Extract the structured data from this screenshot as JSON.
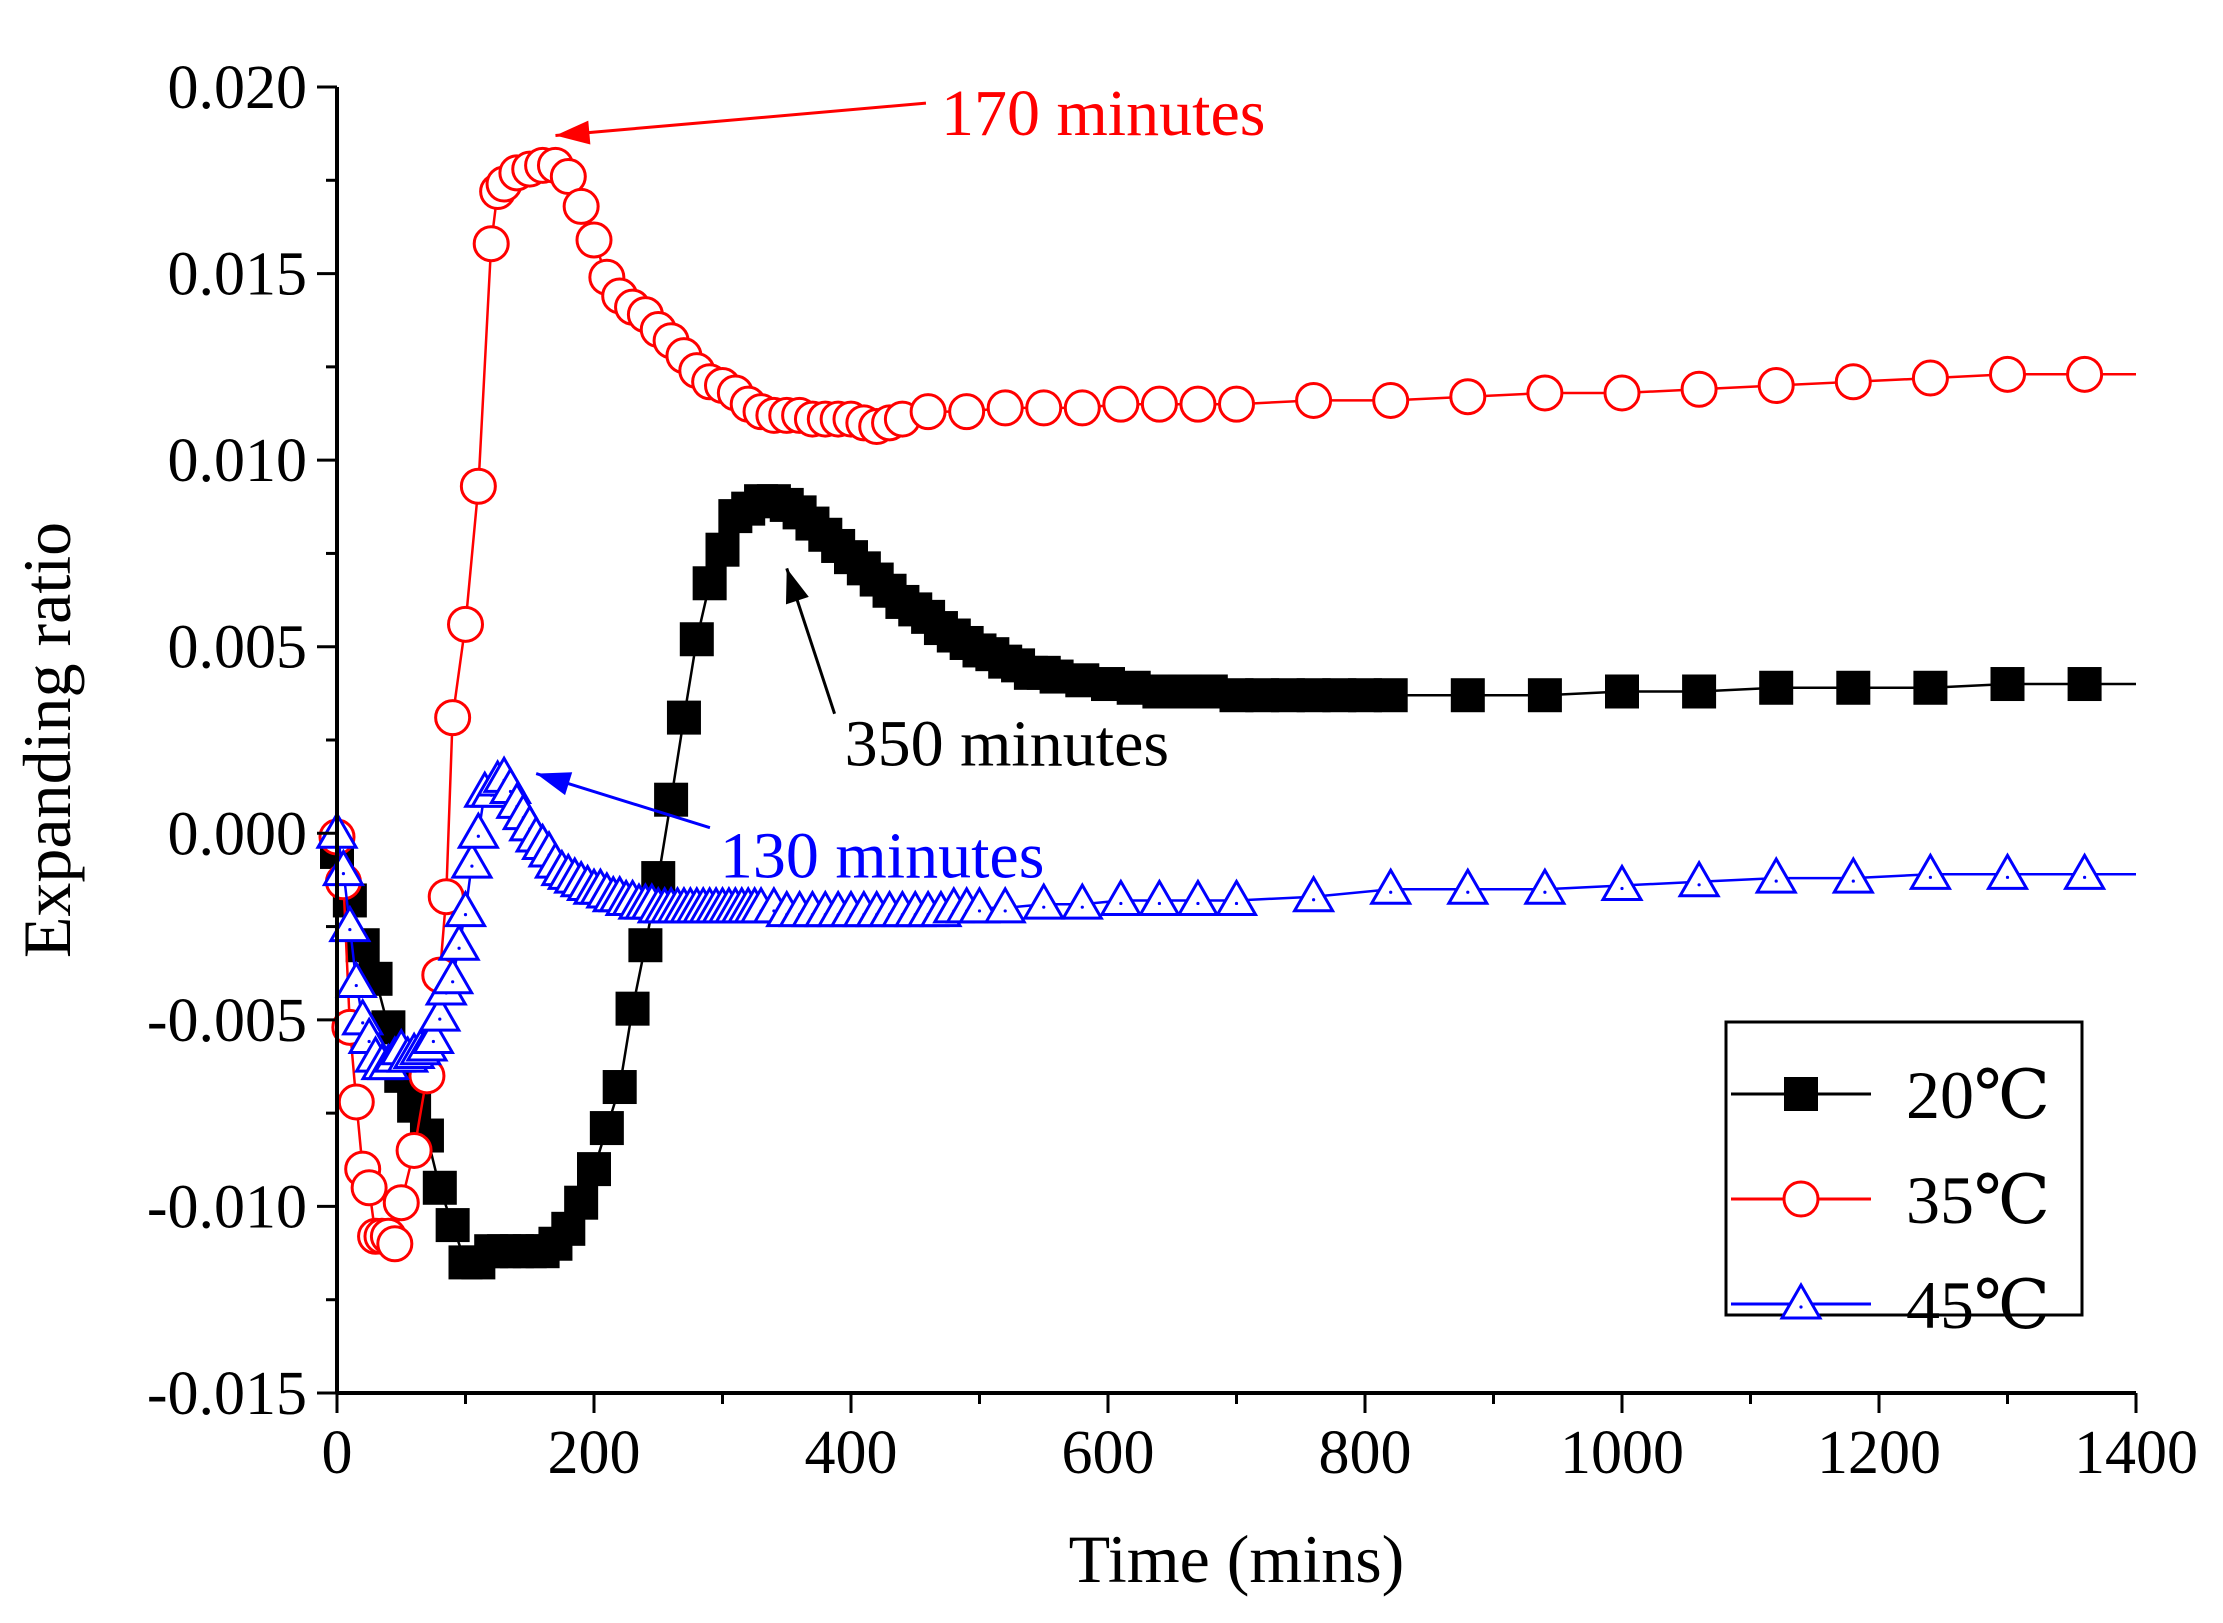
{
  "chart_data": {
    "type": "line",
    "title": "",
    "xlabel": "Time (mins)",
    "ylabel": "Expanding ratio",
    "xlim": [
      0,
      1400
    ],
    "ylim": [
      -0.015,
      0.02
    ],
    "xticks": [
      0,
      200,
      400,
      600,
      800,
      1000,
      1200,
      1400
    ],
    "xtick_labels": [
      "0",
      "200",
      "400",
      "600",
      "800",
      "1000",
      "1200",
      "1400"
    ],
    "yticks": [
      0.02,
      0.015,
      0.01,
      0.005,
      0.0,
      -0.005,
      -0.01,
      -0.015
    ],
    "ytick_labels": [
      "0.020",
      "0.015",
      "0.010",
      "0.005",
      "0.000",
      "-0.005",
      "-0.010",
      "-0.015"
    ],
    "grid": false,
    "legend_position": "bottom-right",
    "series": [
      {
        "name": "20℃",
        "color": "#000000",
        "marker": "filled-square",
        "x": [
          0,
          10,
          20,
          30,
          40,
          50,
          60,
          70,
          80,
          90,
          100,
          110,
          120,
          130,
          140,
          150,
          160,
          170,
          180,
          190,
          200,
          210,
          220,
          230,
          240,
          250,
          260,
          270,
          280,
          290,
          300,
          310,
          320,
          330,
          340,
          350,
          360,
          370,
          380,
          390,
          400,
          410,
          420,
          430,
          440,
          450,
          460,
          470,
          480,
          490,
          500,
          510,
          520,
          530,
          540,
          550,
          560,
          580,
          600,
          620,
          640,
          660,
          680,
          700,
          720,
          740,
          760,
          780,
          800,
          820,
          880,
          940,
          1000,
          1060,
          1120,
          1180,
          1240,
          1300,
          1360
        ],
        "y": [
          -0.0005,
          -0.0018,
          -0.003,
          -0.0039,
          -0.0052,
          -0.0065,
          -0.0073,
          -0.0081,
          -0.0095,
          -0.0105,
          -0.0115,
          -0.0115,
          -0.0112,
          -0.0112,
          -0.0112,
          -0.0112,
          -0.0112,
          -0.011,
          -0.0106,
          -0.0099,
          -0.009,
          -0.0079,
          -0.0068,
          -0.0047,
          -0.003,
          -0.0012,
          0.0009,
          0.0031,
          0.0052,
          0.0067,
          0.0076,
          0.0085,
          0.0087,
          0.0089,
          0.0089,
          0.0088,
          0.0086,
          0.0083,
          0.008,
          0.0077,
          0.0074,
          0.0071,
          0.0068,
          0.0065,
          0.0062,
          0.006,
          0.0058,
          0.0055,
          0.0053,
          0.0051,
          0.0049,
          0.0048,
          0.0046,
          0.0045,
          0.0043,
          0.0043,
          0.0042,
          0.0041,
          0.004,
          0.0039,
          0.0038,
          0.0038,
          0.0038,
          0.0037,
          0.0037,
          0.0037,
          0.0037,
          0.0037,
          0.0037,
          0.0037,
          0.0037,
          0.0037,
          0.0038,
          0.0038,
          0.0039,
          0.0039,
          0.0039,
          0.004,
          0.004
        ]
      },
      {
        "name": "35℃",
        "color": "#ff0000",
        "marker": "open-circle",
        "x": [
          0,
          5,
          10,
          15,
          20,
          25,
          30,
          35,
          40,
          45,
          50,
          60,
          70,
          80,
          85,
          90,
          100,
          110,
          120,
          125,
          130,
          140,
          150,
          160,
          170,
          180,
          190,
          200,
          210,
          220,
          230,
          240,
          250,
          260,
          270,
          280,
          290,
          300,
          310,
          320,
          330,
          340,
          350,
          360,
          370,
          380,
          390,
          400,
          410,
          420,
          430,
          440,
          460,
          490,
          520,
          550,
          580,
          610,
          640,
          670,
          700,
          760,
          820,
          880,
          940,
          1000,
          1060,
          1120,
          1180,
          1240,
          1300,
          1360
        ],
        "y": [
          -0.0001,
          -0.0013,
          -0.0052,
          -0.0072,
          -0.009,
          -0.0095,
          -0.0108,
          -0.0108,
          -0.0108,
          -0.011,
          -0.0099,
          -0.0085,
          -0.0065,
          -0.0038,
          -0.0017,
          0.0031,
          0.0056,
          0.0093,
          0.0158,
          0.0172,
          0.0174,
          0.0177,
          0.0178,
          0.0179,
          0.0179,
          0.0176,
          0.0168,
          0.0159,
          0.0149,
          0.0144,
          0.0141,
          0.0139,
          0.0135,
          0.0132,
          0.0128,
          0.0124,
          0.0121,
          0.012,
          0.0118,
          0.0115,
          0.0113,
          0.0112,
          0.0112,
          0.0112,
          0.0111,
          0.0111,
          0.0111,
          0.0111,
          0.011,
          0.0109,
          0.011,
          0.0111,
          0.0113,
          0.0113,
          0.0114,
          0.0114,
          0.0114,
          0.0115,
          0.0115,
          0.0115,
          0.0115,
          0.0116,
          0.0116,
          0.0117,
          0.0118,
          0.0118,
          0.0119,
          0.012,
          0.0121,
          0.0122,
          0.0123,
          0.0123
        ]
      },
      {
        "name": "45℃",
        "color": "#0000ff",
        "marker": "open-triangle",
        "x": [
          0,
          5,
          10,
          15,
          20,
          25,
          30,
          35,
          40,
          45,
          50,
          55,
          60,
          65,
          70,
          75,
          80,
          85,
          90,
          95,
          100,
          105,
          110,
          115,
          120,
          125,
          130,
          135,
          140,
          145,
          150,
          155,
          160,
          165,
          170,
          175,
          180,
          185,
          190,
          195,
          200,
          205,
          210,
          215,
          220,
          225,
          230,
          235,
          240,
          245,
          250,
          255,
          260,
          265,
          270,
          275,
          280,
          285,
          290,
          295,
          300,
          305,
          310,
          315,
          320,
          325,
          330,
          340,
          350,
          360,
          370,
          380,
          390,
          400,
          410,
          420,
          430,
          440,
          450,
          460,
          470,
          480,
          490,
          500,
          520,
          550,
          580,
          610,
          640,
          670,
          700,
          760,
          820,
          880,
          940,
          1000,
          1060,
          1120,
          1180,
          1240,
          1300,
          1360
        ],
        "y": [
          0.0,
          -0.001,
          -0.0025,
          -0.004,
          -0.005,
          -0.0055,
          -0.006,
          -0.0062,
          -0.0062,
          -0.006,
          -0.0058,
          -0.006,
          -0.0059,
          -0.0058,
          -0.0057,
          -0.0055,
          -0.0049,
          -0.0042,
          -0.0039,
          -0.003,
          -0.0021,
          -0.0008,
          0.0,
          0.0011,
          0.0011,
          0.0014,
          0.0015,
          0.0012,
          0.0008,
          0.0005,
          0.0002,
          -0.0001,
          -0.0003,
          -0.0005,
          -0.0008,
          -0.001,
          -0.0011,
          -0.0012,
          -0.0013,
          -0.0014,
          -0.0015,
          -0.0015,
          -0.0016,
          -0.0017,
          -0.0017,
          -0.0018,
          -0.0018,
          -0.0019,
          -0.0019,
          -0.0019,
          -0.002,
          -0.002,
          -0.002,
          -0.002,
          -0.002,
          -0.002,
          -0.002,
          -0.002,
          -0.002,
          -0.002,
          -0.002,
          -0.002,
          -0.002,
          -0.002,
          -0.002,
          -0.002,
          -0.002,
          -0.002,
          -0.0021,
          -0.0021,
          -0.0021,
          -0.0021,
          -0.0021,
          -0.0021,
          -0.0021,
          -0.0021,
          -0.0021,
          -0.0021,
          -0.0021,
          -0.0021,
          -0.0021,
          -0.002,
          -0.002,
          -0.002,
          -0.002,
          -0.0019,
          -0.0019,
          -0.0018,
          -0.0018,
          -0.0018,
          -0.0018,
          -0.0017,
          -0.0015,
          -0.0015,
          -0.0015,
          -0.0014,
          -0.0013,
          -0.0012,
          -0.0012,
          -0.0011,
          -0.0011,
          -0.0011
        ]
      }
    ],
    "annotations": [
      {
        "text": "170 minutes",
        "color": "#ff0000",
        "target_x": 170,
        "target_y": 0.0187,
        "text_x": 470,
        "text_y": 0.0193,
        "anchor": "start"
      },
      {
        "text": "350 minutes",
        "color": "#000000",
        "target_x": 350,
        "target_y": 0.0071,
        "text_x": 395,
        "text_y": 0.0024,
        "anchor": "start"
      },
      {
        "text": "130 minutes",
        "color": "#0000ff",
        "target_x": 155,
        "target_y": 0.0016,
        "text_x": 298,
        "text_y": -0.0006,
        "anchor": "start"
      }
    ]
  }
}
